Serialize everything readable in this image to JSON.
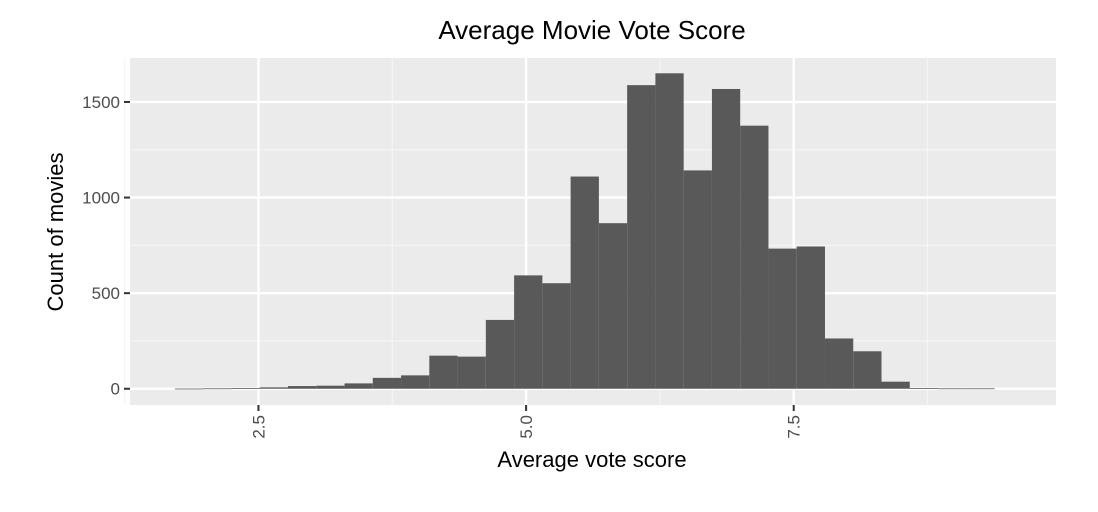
{
  "chart_data": {
    "type": "bar",
    "title": "Average Movie Vote Score",
    "xlabel": "Average vote score",
    "ylabel": "Count of movies",
    "bin_width": 0.264,
    "bins": [
      {
        "start": 1.72,
        "count": 1
      },
      {
        "start": 1.984,
        "count": 2
      },
      {
        "start": 2.248,
        "count": 3
      },
      {
        "start": 2.512,
        "count": 7
      },
      {
        "start": 2.776,
        "count": 14
      },
      {
        "start": 3.04,
        "count": 16
      },
      {
        "start": 3.304,
        "count": 28
      },
      {
        "start": 3.568,
        "count": 57
      },
      {
        "start": 3.832,
        "count": 70
      },
      {
        "start": 4.096,
        "count": 173
      },
      {
        "start": 4.36,
        "count": 168
      },
      {
        "start": 4.624,
        "count": 360
      },
      {
        "start": 4.888,
        "count": 593
      },
      {
        "start": 5.152,
        "count": 552
      },
      {
        "start": 5.416,
        "count": 1110
      },
      {
        "start": 5.68,
        "count": 866
      },
      {
        "start": 5.944,
        "count": 1588
      },
      {
        "start": 6.208,
        "count": 1650
      },
      {
        "start": 6.472,
        "count": 1142
      },
      {
        "start": 6.736,
        "count": 1568
      },
      {
        "start": 7.0,
        "count": 1376
      },
      {
        "start": 7.264,
        "count": 733
      },
      {
        "start": 7.528,
        "count": 744
      },
      {
        "start": 7.792,
        "count": 263
      },
      {
        "start": 8.056,
        "count": 196
      },
      {
        "start": 8.32,
        "count": 37
      },
      {
        "start": 8.584,
        "count": 3
      },
      {
        "start": 8.848,
        "count": 2
      },
      {
        "start": 9.112,
        "count": 2
      }
    ],
    "x_ticks": [
      2.5,
      5.0,
      7.5
    ],
    "x_tick_labels": [
      "2.5",
      "5.0",
      "7.5"
    ],
    "x_minor_ticks": [
      1.25,
      3.75,
      6.25,
      8.75
    ],
    "y_ticks": [
      0,
      500,
      1000,
      1500
    ],
    "y_tick_labels": [
      "0",
      "500",
      "1000",
      "1500"
    ],
    "y_minor_ticks": [
      250,
      750,
      1250
    ],
    "xlim": [
      1.3,
      9.95
    ],
    "ylim": [
      -85,
      1730
    ],
    "grid": true,
    "legend": "none",
    "colors": {
      "panel_background": "#ebebeb",
      "grid_major": "#ffffff",
      "grid_minor": "#f5f5f5",
      "bar_fill": "#595959",
      "tick_mark": "#333333"
    }
  }
}
